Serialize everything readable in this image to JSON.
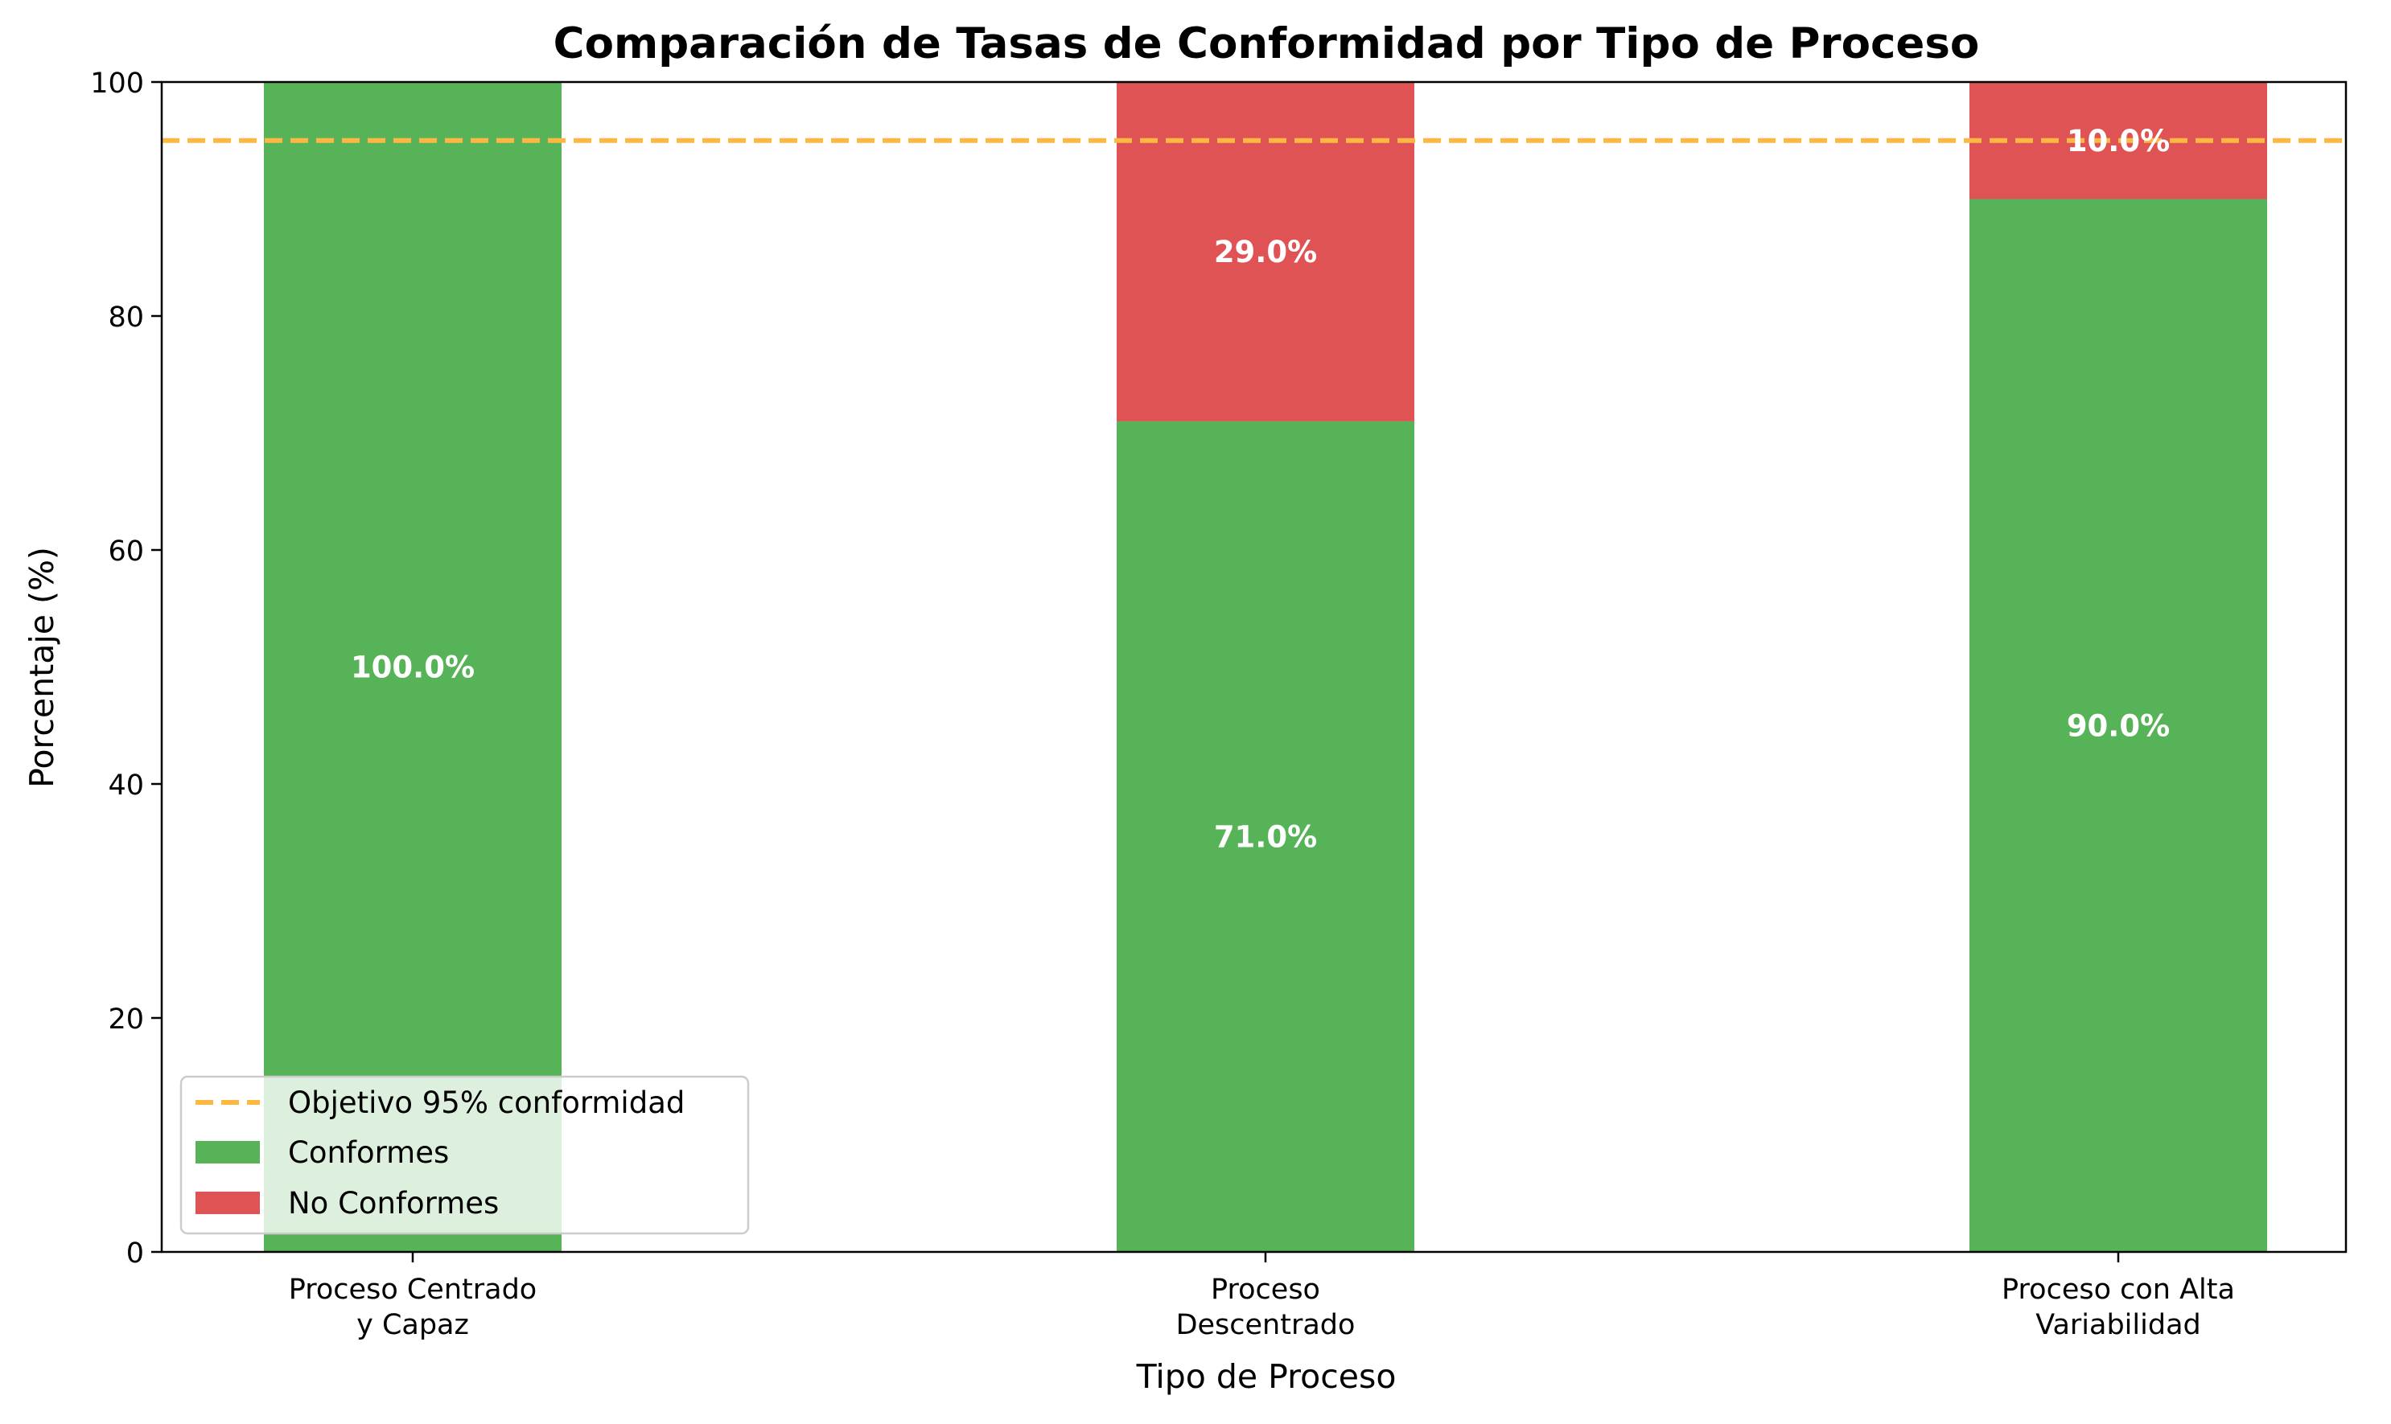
{
  "chart_data": {
    "type": "bar",
    "stacked": true,
    "title": "Comparación de Tasas de Conformidad por Tipo de Proceso",
    "xlabel": "Tipo de Proceso",
    "ylabel": "Porcentaje (%)",
    "ylim": [
      0,
      100
    ],
    "yticks": [
      "0",
      "20",
      "40",
      "60",
      "80",
      "100"
    ],
    "grid": false,
    "categories": [
      [
        "Proceso Centrado",
        "y Capaz"
      ],
      [
        "Proceso",
        "Descentrado"
      ],
      [
        "Proceso con Alta",
        "Variabilidad"
      ]
    ],
    "series": [
      {
        "name": "Conformes",
        "values": [
          100,
          71,
          90
        ],
        "color": "#57b357",
        "labels": [
          "100.0%",
          "71.0%",
          "90.0%"
        ]
      },
      {
        "name": "No Conformes",
        "values": [
          0,
          29,
          10
        ],
        "color": "#e05355",
        "labels": [
          "",
          "29.0%",
          "10.0%"
        ]
      }
    ],
    "reference_line": {
      "name": "Objetivo 95% conformidad",
      "value": 95,
      "color": "#fbb944",
      "style": "dashed"
    },
    "legend": {
      "position": "lower-left",
      "entries": [
        "Objetivo 95% conformidad",
        "Conformes",
        "No Conformes"
      ]
    }
  }
}
